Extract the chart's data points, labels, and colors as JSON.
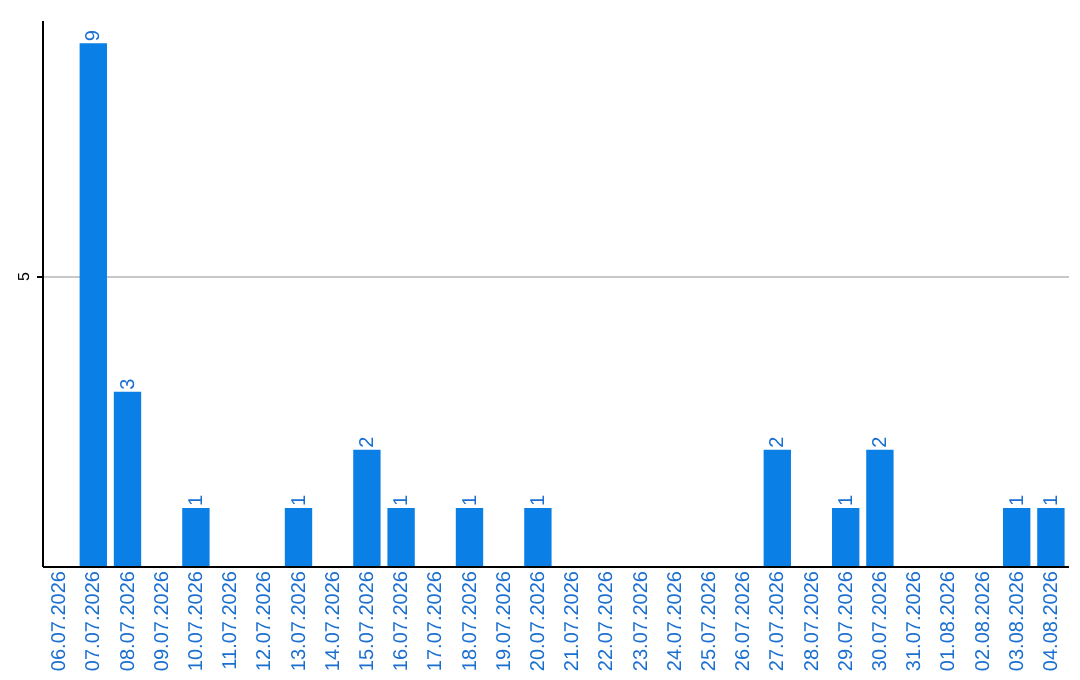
{
  "chart_data": {
    "type": "bar",
    "categories": [
      "06.07.2026",
      "07.07.2026",
      "08.07.2026",
      "09.07.2026",
      "10.07.2026",
      "11.07.2026",
      "12.07.2026",
      "13.07.2026",
      "14.07.2026",
      "15.07.2026",
      "16.07.2026",
      "17.07.2026",
      "18.07.2026",
      "19.07.2026",
      "20.07.2026",
      "21.07.2026",
      "22.07.2026",
      "23.07.2026",
      "24.07.2026",
      "25.07.2026",
      "26.07.2026",
      "27.07.2026",
      "28.07.2026",
      "29.07.2026",
      "30.07.2026",
      "31.07.2026",
      "01.08.2026",
      "02.08.2026",
      "03.08.2026",
      "04.08.2026"
    ],
    "values": [
      0,
      9,
      3,
      0,
      1,
      0,
      0,
      1,
      0,
      2,
      1,
      0,
      1,
      0,
      1,
      0,
      0,
      0,
      0,
      0,
      0,
      2,
      0,
      1,
      2,
      0,
      0,
      0,
      1,
      1
    ],
    "value_labels": [
      null,
      "9",
      "3",
      null,
      "1",
      null,
      null,
      "1",
      null,
      "2",
      "1",
      null,
      "1",
      null,
      "1",
      null,
      null,
      null,
      null,
      null,
      null,
      "2",
      null,
      "1",
      "2",
      null,
      null,
      null,
      "1",
      "1"
    ],
    "color": "#0a7fe6",
    "ylim": [
      0,
      9.4
    ],
    "yticks": [
      5
    ],
    "grid": "y"
  }
}
